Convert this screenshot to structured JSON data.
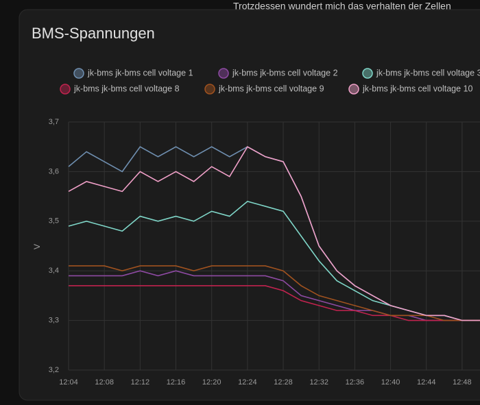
{
  "background_text": "Trotzdessen wundert mich das verhalten der Zellen",
  "chart_data": {
    "type": "line",
    "title": "BMS-Spannungen",
    "y_label": "V",
    "x": [
      "12:04",
      "12:06",
      "12:08",
      "12:10",
      "12:12",
      "12:14",
      "12:16",
      "12:18",
      "12:20",
      "12:22",
      "12:24",
      "12:26",
      "12:28",
      "12:30",
      "12:32",
      "12:34",
      "12:36",
      "12:38",
      "12:40",
      "12:42",
      "12:44",
      "12:46",
      "12:48",
      "12:50"
    ],
    "xlim": [
      "12:04",
      "12:50"
    ],
    "xticks": [
      "12:04",
      "12:08",
      "12:12",
      "12:16",
      "12:20",
      "12:24",
      "12:28",
      "12:32",
      "12:36",
      "12:40",
      "12:44",
      "12:48"
    ],
    "ylim": [
      3.2,
      3.7
    ],
    "yticks": [
      {
        "value": 3.2,
        "label": "3,2"
      },
      {
        "value": 3.3,
        "label": "3,3"
      },
      {
        "value": 3.4,
        "label": "3,4"
      },
      {
        "value": 3.5,
        "label": "3,5"
      },
      {
        "value": 3.6,
        "label": "3,6"
      },
      {
        "value": 3.7,
        "label": "3,7"
      }
    ],
    "grid": true,
    "series": [
      {
        "name": "jk-bms jk-bms cell voltage 1",
        "color": "#6f8fb0",
        "values": [
          3.61,
          3.64,
          3.62,
          3.6,
          3.65,
          3.63,
          3.65,
          3.63,
          3.65,
          3.63,
          3.65,
          3.63,
          3.62,
          3.55,
          3.45,
          3.4,
          3.37,
          3.35,
          3.33,
          3.32,
          3.31,
          3.31,
          3.3,
          3.3
        ]
      },
      {
        "name": "jk-bms jk-bms cell voltage 2",
        "color": "#8e4aa3",
        "values": [
          3.39,
          3.39,
          3.39,
          3.39,
          3.4,
          3.39,
          3.4,
          3.39,
          3.39,
          3.39,
          3.39,
          3.39,
          3.38,
          3.35,
          3.34,
          3.33,
          3.32,
          3.32,
          3.31,
          3.31,
          3.3,
          3.3,
          3.3,
          3.3
        ]
      },
      {
        "name": "jk-bms jk-bms cell voltage 3",
        "color": "#7fd6c8",
        "values": [
          3.49,
          3.5,
          3.49,
          3.48,
          3.51,
          3.5,
          3.51,
          3.5,
          3.52,
          3.51,
          3.54,
          3.53,
          3.52,
          3.47,
          3.42,
          3.38,
          3.36,
          3.34,
          3.33,
          3.32,
          3.31,
          3.31,
          3.3,
          3.3
        ]
      },
      {
        "name": "jk-bms jk-bms cell voltage 8",
        "color": "#c2234f",
        "values": [
          3.37,
          3.37,
          3.37,
          3.37,
          3.37,
          3.37,
          3.37,
          3.37,
          3.37,
          3.37,
          3.37,
          3.37,
          3.36,
          3.34,
          3.33,
          3.32,
          3.32,
          3.31,
          3.31,
          3.3,
          3.3,
          3.3,
          3.3,
          3.3
        ]
      },
      {
        "name": "jk-bms jk-bms cell voltage 9",
        "color": "#a0521f",
        "values": [
          3.41,
          3.41,
          3.41,
          3.4,
          3.41,
          3.41,
          3.41,
          3.4,
          3.41,
          3.41,
          3.41,
          3.41,
          3.4,
          3.37,
          3.35,
          3.34,
          3.33,
          3.32,
          3.31,
          3.31,
          3.31,
          3.3,
          3.3,
          3.3
        ]
      },
      {
        "name": "jk-bms jk-bms cell voltage 10",
        "color": "#f0a0c8",
        "values": [
          3.56,
          3.58,
          3.57,
          3.56,
          3.6,
          3.58,
          3.6,
          3.58,
          3.61,
          3.59,
          3.65,
          3.63,
          3.62,
          3.55,
          3.45,
          3.4,
          3.37,
          3.35,
          3.33,
          3.32,
          3.31,
          3.31,
          3.3,
          3.3
        ]
      }
    ]
  }
}
